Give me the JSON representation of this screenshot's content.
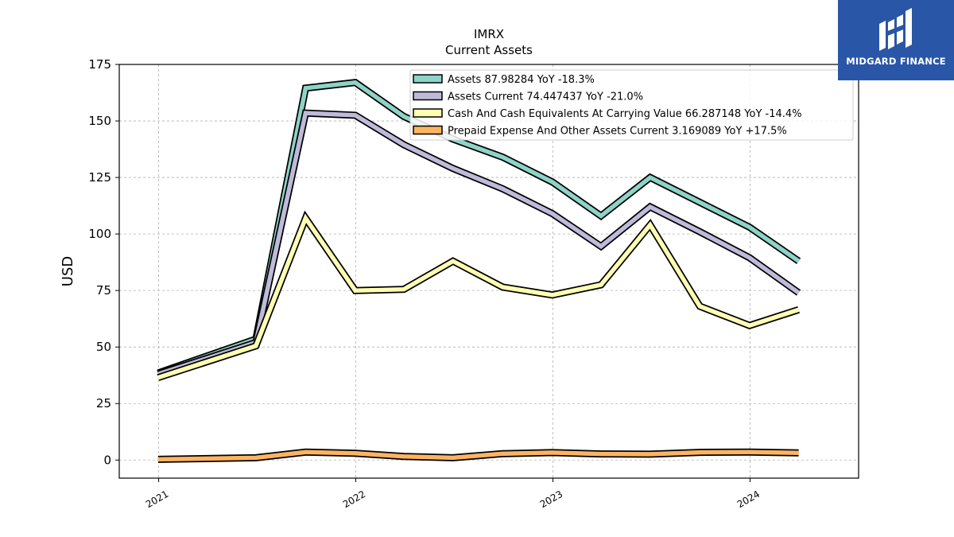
{
  "brand": {
    "name": "MIDGARD FINANCE",
    "bg_color": "#2a56a8"
  },
  "chart_data": {
    "type": "line",
    "title": "IMRX",
    "subtitle": "Current  Assets",
    "ylabel": "USD",
    "xlabel": "",
    "ylim": [
      -8,
      175
    ],
    "yticks": [
      0,
      25,
      50,
      75,
      100,
      125,
      150,
      175
    ],
    "xlim": [
      "2020-10-20",
      "2024-07-20"
    ],
    "xticks": [
      {
        "date": "2021-01-01",
        "label": "2021"
      },
      {
        "date": "2022-01-01",
        "label": "2022"
      },
      {
        "date": "2023-01-01",
        "label": "2023"
      },
      {
        "date": "2024-01-01",
        "label": "2024"
      }
    ],
    "x": [
      "2020-12-31",
      "2021-06-30",
      "2021-09-30",
      "2021-12-31",
      "2022-03-31",
      "2022-06-30",
      "2022-09-30",
      "2022-12-31",
      "2023-03-31",
      "2023-06-30",
      "2023-09-30",
      "2023-12-31",
      "2024-03-31"
    ],
    "grid": true,
    "legend_position": "top-right",
    "series": [
      {
        "name": "Assets",
        "legend": "Assets  87.98284 YoY -18.3%",
        "color": "#8dd3c7",
        "values": [
          38.5,
          53.5,
          164.5,
          167,
          152,
          142,
          134,
          123,
          108,
          125,
          114,
          103,
          88
        ]
      },
      {
        "name": "Assets Current",
        "legend": "Assets Current  74.447437 YoY -21.0%",
        "color": "#bebada",
        "values": [
          38,
          52,
          153.5,
          152.5,
          139.5,
          129,
          120,
          109,
          94.5,
          112,
          101,
          89.5,
          74
        ]
      },
      {
        "name": "Cash And Cash Equivalents At Carrying Value",
        "legend": "Cash And Cash Equivalents At Carrying Value  66.287148 YoY -14.4%",
        "color": "#ffffb3",
        "values": [
          36.5,
          50.5,
          107,
          75,
          75.5,
          88,
          76.5,
          73,
          77.5,
          104,
          68,
          59.5,
          66.5
        ]
      },
      {
        "name": "Prepaid Expense And Other Assets Current",
        "legend": "Prepaid Expense And Other Assets Current  3.169089 YoY +17.5%",
        "color": "#fdb462",
        "values": [
          0.3,
          1.0,
          3.5,
          3.0,
          1.6,
          1.0,
          2.8,
          3.3,
          2.7,
          2.6,
          3.4,
          3.5,
          3.2
        ]
      }
    ]
  }
}
